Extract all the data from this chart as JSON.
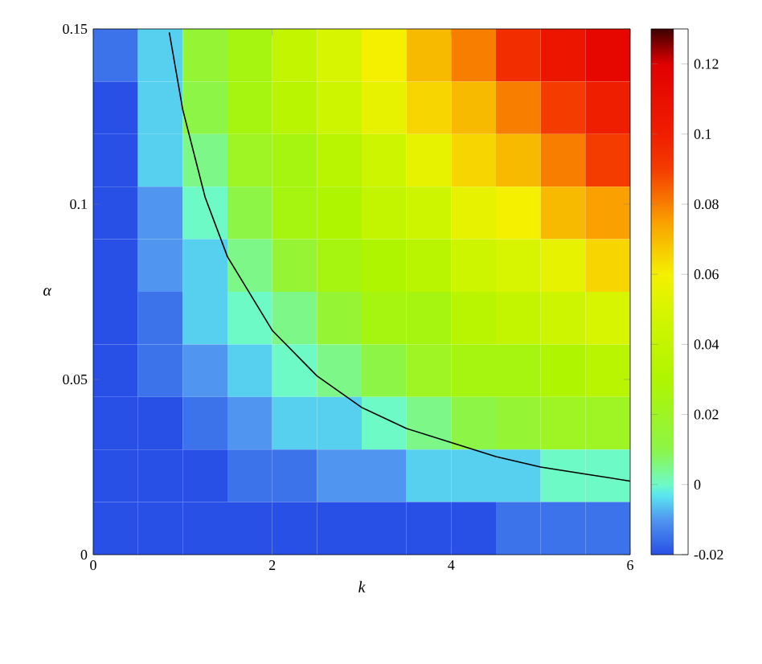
{
  "chart_data": {
    "type": "heatmap",
    "xlabel": "k",
    "ylabel": "α",
    "x": [
      0.25,
      0.75,
      1.25,
      1.75,
      2.25,
      2.75,
      3.25,
      3.75,
      4.25,
      4.75,
      5.25,
      5.75
    ],
    "xlim": [
      0,
      6
    ],
    "xticks": [
      0,
      2,
      4,
      6
    ],
    "ylim": [
      0,
      0.15
    ],
    "yticks": [
      0,
      0.05,
      0.1,
      0.15
    ],
    "clim": [
      -0.02,
      0.13
    ],
    "cticks": [
      -0.02,
      0,
      0.02,
      0.04,
      0.06,
      0.08,
      0.1,
      0.12
    ],
    "cells": [
      [
        -0.015,
        -0.005,
        0.015,
        0.025,
        0.04,
        0.05,
        0.06,
        0.07,
        0.08,
        0.095,
        0.105,
        0.115
      ],
      [
        -0.02,
        -0.005,
        0.01,
        0.025,
        0.035,
        0.045,
        0.055,
        0.065,
        0.07,
        0.08,
        0.09,
        0.1
      ],
      [
        -0.02,
        -0.005,
        0.005,
        0.02,
        0.025,
        0.035,
        0.045,
        0.055,
        0.065,
        0.07,
        0.08,
        0.09
      ],
      [
        -0.02,
        -0.01,
        0,
        0.01,
        0.025,
        0.03,
        0.04,
        0.045,
        0.055,
        0.06,
        0.07,
        0.075
      ],
      [
        -0.02,
        -0.01,
        -0.005,
        0.005,
        0.015,
        0.025,
        0.03,
        0.035,
        0.045,
        0.05,
        0.055,
        0.065
      ],
      [
        -0.02,
        -0.015,
        -0.005,
        0,
        0.005,
        0.015,
        0.025,
        0.025,
        0.035,
        0.04,
        0.045,
        0.05
      ],
      [
        -0.02,
        -0.015,
        -0.01,
        -0.005,
        0,
        0.005,
        0.01,
        0.02,
        0.025,
        0.025,
        0.03,
        0.035
      ],
      [
        -0.02,
        -0.02,
        -0.015,
        -0.01,
        -0.005,
        -0.005,
        0,
        0.005,
        0.01,
        0.015,
        0.02,
        0.02
      ],
      [
        -0.02,
        -0.02,
        -0.02,
        -0.015,
        -0.015,
        -0.01,
        -0.01,
        -0.005,
        -0.005,
        -0.005,
        0,
        0
      ],
      [
        -0.02,
        -0.02,
        -0.02,
        -0.02,
        -0.02,
        -0.02,
        -0.02,
        -0.02,
        -0.02,
        -0.015,
        -0.015,
        -0.015
      ]
    ],
    "series": [
      {
        "type": "line",
        "color": "#000000",
        "x": [
          0.85,
          1,
          1.25,
          1.5,
          2,
          2.5,
          3,
          3.5,
          4,
          4.5,
          5,
          5.5,
          6
        ],
        "values": [
          0.149,
          0.127,
          0.102,
          0.085,
          0.064,
          0.051,
          0.042,
          0.036,
          0.032,
          0.028,
          0.025,
          0.023,
          0.021
        ]
      }
    ]
  }
}
